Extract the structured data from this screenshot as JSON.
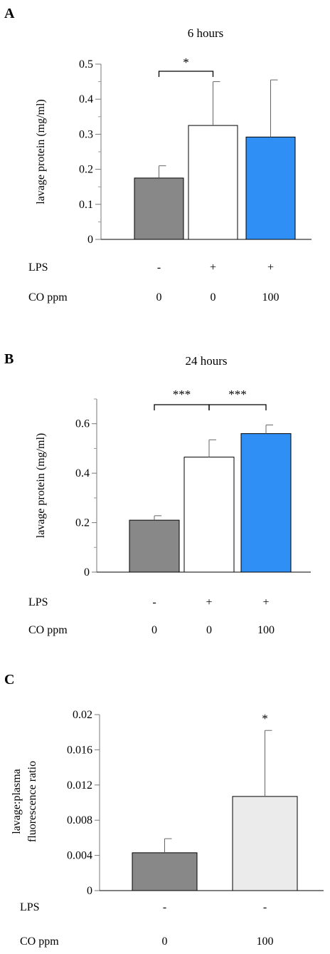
{
  "panels": [
    {
      "letter": "A",
      "chart_data": {
        "type": "bar",
        "title": "6 hours",
        "ylabel": "lavage  protein (mg/ml)",
        "ylim": [
          0,
          0.5
        ],
        "yticks": [
          "0",
          "0.1",
          "0.2",
          "0.3",
          "0.4",
          "0.5"
        ],
        "categories": [
          "LPS - / CO 0",
          "LPS + / CO 0",
          "LPS + / CO 100"
        ],
        "values": [
          0.175,
          0.325,
          0.292
        ],
        "errors": [
          0.035,
          0.125,
          0.163
        ],
        "bar_colors": [
          "#888888",
          "#ffffff",
          "#2f8ff5"
        ],
        "conditions": [
          {
            "label": "LPS",
            "values": [
              "-",
              "+",
              "+"
            ]
          },
          {
            "label": "CO ppm",
            "values": [
              "0",
              "0",
              "100"
            ]
          }
        ],
        "significance": [
          {
            "from": 0,
            "to": 1,
            "label": "*"
          }
        ]
      }
    },
    {
      "letter": "B",
      "chart_data": {
        "type": "bar",
        "title": "24 hours",
        "ylabel": "lavage protein (mg/ml)",
        "ylim": [
          0,
          0.7
        ],
        "yticks": [
          "0",
          "0.2",
          "0.4",
          "0.6"
        ],
        "categories": [
          "LPS - / CO 0",
          "LPS + / CO 0",
          "LPS + / CO 100"
        ],
        "values": [
          0.21,
          0.465,
          0.56
        ],
        "errors": [
          0.018,
          0.07,
          0.035
        ],
        "bar_colors": [
          "#888888",
          "#ffffff",
          "#2f8ff5"
        ],
        "conditions": [
          {
            "label": "LPS",
            "values": [
              "-",
              "+",
              "+"
            ]
          },
          {
            "label": "CO ppm",
            "values": [
              "0",
              "0",
              "100"
            ]
          }
        ],
        "significance": [
          {
            "from": 0,
            "to": 1,
            "label": "***"
          },
          {
            "from": 1,
            "to": 2,
            "label": "***"
          }
        ]
      }
    },
    {
      "letter": "C",
      "chart_data": {
        "type": "bar",
        "title": "",
        "ylabel": [
          "lavage:plasma",
          "fluorescence ratio"
        ],
        "ylim": [
          0,
          0.02
        ],
        "yticks": [
          "0",
          "0.004",
          "0.008",
          "0.012",
          "0.016",
          "0.02"
        ],
        "categories": [
          "LPS - / CO 0",
          "LPS - / CO 100"
        ],
        "values": [
          0.0043,
          0.0107
        ],
        "errors": [
          0.0016,
          0.0075
        ],
        "bar_colors": [
          "#888888",
          "#ebebeb"
        ],
        "conditions": [
          {
            "label": "LPS",
            "values": [
              "-",
              "-"
            ]
          },
          {
            "label": "CO ppm",
            "values": [
              "0",
              "100"
            ]
          }
        ],
        "bar_annotations": [
          {
            "bar": 1,
            "label": "*"
          }
        ]
      }
    }
  ]
}
